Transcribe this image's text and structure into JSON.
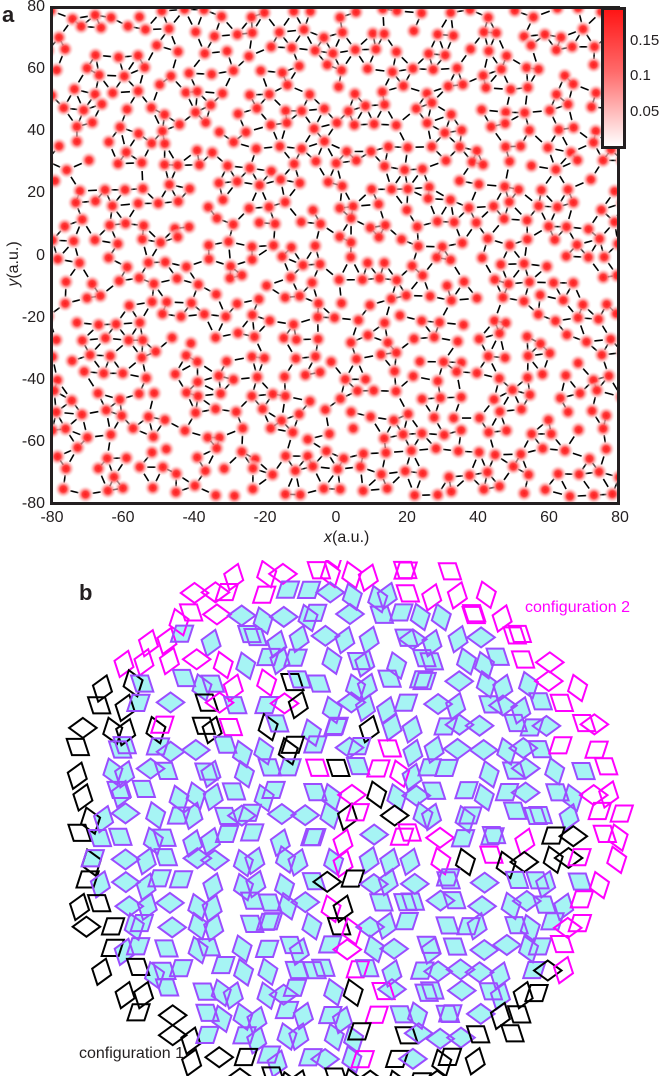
{
  "panel_a": {
    "label": "a",
    "xlabel_var": "x",
    "xlabel_unit": "(a.u.)",
    "ylabel_var": "y",
    "ylabel_unit": "(a.u.)",
    "xticks": [
      "-80",
      "-60",
      "-40",
      "-20",
      "0",
      "20",
      "40",
      "60",
      "80"
    ],
    "yticks": [
      "80",
      "60",
      "40",
      "20",
      "0",
      "-20",
      "-40",
      "-60",
      "-80"
    ],
    "colorbar": {
      "ticks": [
        "0.15",
        "0.1",
        "0.05"
      ],
      "color_max": "#ff1515",
      "color_min": "#ffffff"
    },
    "blob_color": "#ff2a2a",
    "bond_color": "#000000"
  },
  "panel_b": {
    "label": "b",
    "config1_label": "configuration 1",
    "config2_label": "configuration 2",
    "colors": {
      "config1": "#000000",
      "config2": "#ff00ff",
      "overlap_fill": "#a6f4f4",
      "overlap_edge": "#9b4dff"
    }
  },
  "chart_data": {
    "type": "heatmap",
    "title": "",
    "xlabel": "x (a.u.)",
    "ylabel": "y (a.u.)",
    "xlim": [
      -80,
      80
    ],
    "ylim": [
      -80,
      80
    ],
    "xticks": [
      -80,
      -60,
      -40,
      -20,
      0,
      20,
      40,
      60,
      80
    ],
    "yticks": [
      -80,
      -60,
      -40,
      -20,
      0,
      20,
      40,
      60,
      80
    ],
    "colorbar": {
      "ticks": [
        0.05,
        0.1,
        0.15
      ],
      "range": [
        0,
        0.18
      ],
      "colormap": "white-to-red"
    },
    "description": "Quasicrystalline density peaks (red) connected by bonds (black lines); panel b shows overlapping rhombus tilings configuration 1 (black) and configuration 2 (magenta) with matching regions shaded cyan."
  }
}
